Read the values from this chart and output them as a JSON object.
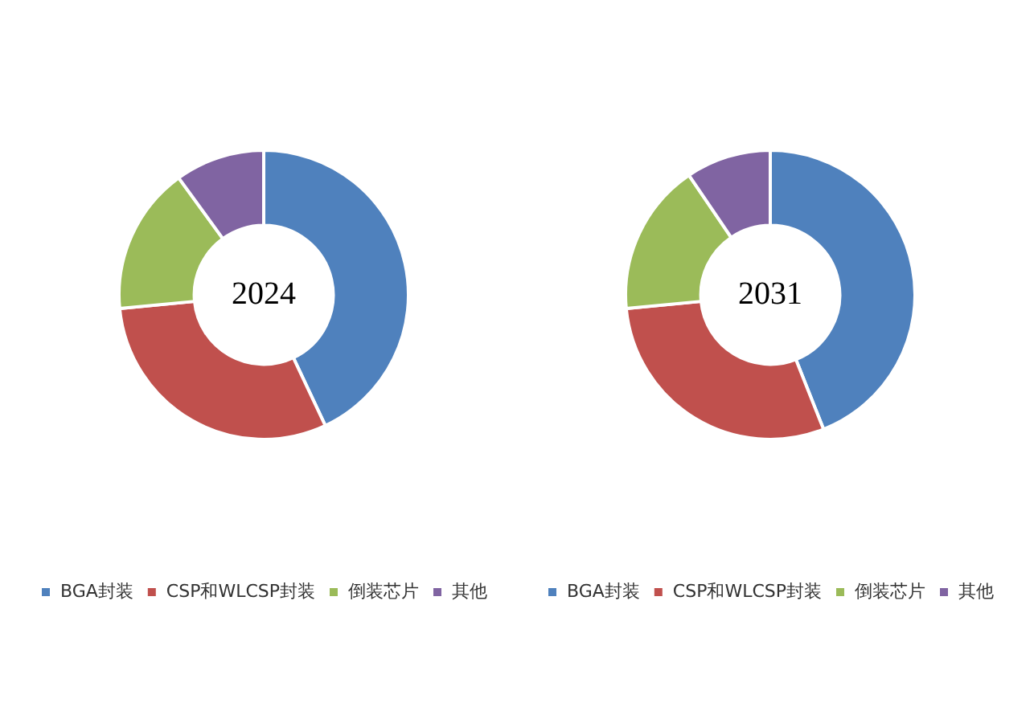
{
  "chart_data": [
    {
      "type": "donut",
      "title": "2024",
      "categories": [
        "BGA封装",
        "CSP和WLCSP封装",
        "倒装芯片",
        "其他"
      ],
      "values": [
        43,
        30.5,
        16.5,
        10
      ],
      "colors": [
        "#4f81bd",
        "#c0504d",
        "#9bbb59",
        "#8064a2"
      ],
      "legend": "bottom"
    },
    {
      "type": "donut",
      "title": "2031",
      "categories": [
        "BGA封装",
        "CSP和WLCSP封装",
        "倒装芯片",
        "其他"
      ],
      "values": [
        44,
        29.5,
        17,
        9.5
      ],
      "colors": [
        "#4f81bd",
        "#c0504d",
        "#9bbb59",
        "#8064a2"
      ],
      "legend": "bottom"
    }
  ]
}
